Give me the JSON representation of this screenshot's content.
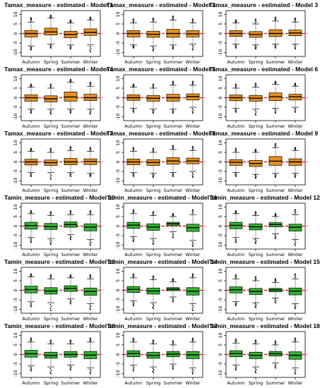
{
  "chart_data": {
    "type": "boxplot",
    "layout": {
      "rows": 6,
      "cols": 3
    },
    "categories": [
      "Autumn",
      "Spring",
      "Summer",
      "Winter"
    ],
    "yticks": [
      -10,
      -5,
      0,
      5,
      10
    ],
    "ylim": [
      -12,
      12
    ],
    "reference_line": {
      "y": 0,
      "color": "#e02020",
      "style": "dashed"
    },
    "colors": {
      "tamax": "#e6901e",
      "tamin": "#33b233",
      "outline": "#000000"
    },
    "panels": [
      {
        "title": "Tamax_measure - estimated - Model 1",
        "variable": "tamax",
        "boxes": [
          {
            "q1": -1.8,
            "med": 0.0,
            "q3": 1.6,
            "lo": -6.5,
            "hi": 6.0,
            "out": [
              -8.5,
              7.5,
              8.2
            ]
          },
          {
            "q1": -0.8,
            "med": 0.8,
            "q3": 2.8,
            "lo": -5.5,
            "hi": 8.0,
            "out": [
              -7.5,
              9.5
            ]
          },
          {
            "q1": -2.2,
            "med": -0.5,
            "q3": 1.2,
            "lo": -6.0,
            "hi": 5.5,
            "out": [
              -8.0,
              7.0
            ]
          },
          {
            "q1": -1.0,
            "med": 0.6,
            "q3": 2.4,
            "lo": -6.0,
            "hi": 7.0,
            "out": [
              -9.5,
              8.5
            ]
          }
        ]
      },
      {
        "title": "Tamax_measure - estimated - Model 2",
        "variable": "tamax",
        "boxes": [
          {
            "q1": -1.8,
            "med": 0.0,
            "q3": 1.5,
            "lo": -6.0,
            "hi": 5.5,
            "out": [
              -7.5,
              7.5
            ]
          },
          {
            "q1": -2.0,
            "med": -0.4,
            "q3": 1.2,
            "lo": -6.5,
            "hi": 6.0,
            "out": [
              -9.0,
              8.0
            ]
          },
          {
            "q1": -2.0,
            "med": 0.0,
            "q3": 2.2,
            "lo": -6.0,
            "hi": 7.0,
            "out": [
              -8.0,
              9.0
            ]
          },
          {
            "q1": -1.8,
            "med": -0.2,
            "q3": 1.5,
            "lo": -5.5,
            "hi": 5.5,
            "out": [
              -8.5,
              7.5
            ]
          }
        ]
      },
      {
        "title": "Tamax_measure - estimated - Model 3",
        "variable": "tamax",
        "boxes": [
          {
            "q1": -1.5,
            "med": 0.0,
            "q3": 1.5,
            "lo": -5.5,
            "hi": 5.5,
            "out": [
              -7.5,
              7.0
            ]
          },
          {
            "q1": -2.0,
            "med": -0.5,
            "q3": 1.0,
            "lo": -6.0,
            "hi": 5.0,
            "out": [
              -8.0,
              7.5
            ]
          },
          {
            "q1": -1.6,
            "med": 0.0,
            "q3": 2.0,
            "lo": -5.5,
            "hi": 6.5,
            "out": [
              -7.5,
              8.5
            ]
          },
          {
            "q1": -1.2,
            "med": 0.3,
            "q3": 1.8,
            "lo": -5.5,
            "hi": 6.0,
            "out": [
              -8.0,
              8.0
            ]
          }
        ]
      },
      {
        "title": "Tamax_measure - estimated - Model 4",
        "variable": "tamax",
        "boxes": [
          {
            "q1": -1.8,
            "med": 0.0,
            "q3": 1.5,
            "lo": -6.0,
            "hi": 5.5,
            "out": [
              -8.0,
              7.0
            ]
          },
          {
            "q1": -2.2,
            "med": -0.6,
            "q3": 1.0,
            "lo": -6.0,
            "hi": 5.0,
            "out": [
              -8.5,
              7.0
            ]
          },
          {
            "q1": -1.8,
            "med": 0.4,
            "q3": 3.0,
            "lo": -6.0,
            "hi": 8.0,
            "out": [
              -8.0,
              9.5
            ]
          },
          {
            "q1": -1.5,
            "med": 0.0,
            "q3": 1.8,
            "lo": -6.0,
            "hi": 6.0,
            "out": [
              -8.5,
              8.0
            ]
          }
        ]
      },
      {
        "title": "Tamax_measure - estimated - Model 5",
        "variable": "tamax",
        "boxes": [
          {
            "q1": -1.4,
            "med": 0.0,
            "q3": 1.5,
            "lo": -5.5,
            "hi": 5.5,
            "out": [
              -7.5,
              7.0
            ]
          },
          {
            "q1": -1.8,
            "med": -0.3,
            "q3": 1.2,
            "lo": -6.0,
            "hi": 5.0,
            "out": [
              -8.0,
              7.0
            ]
          },
          {
            "q1": -1.8,
            "med": 0.0,
            "q3": 1.8,
            "lo": -6.0,
            "hi": 6.5,
            "out": [
              -8.0,
              8.5
            ]
          },
          {
            "q1": -1.2,
            "med": 0.6,
            "q3": 2.0,
            "lo": -5.0,
            "hi": 6.5,
            "out": [
              -8.0,
              8.5
            ]
          }
        ]
      },
      {
        "title": "Tamax_measure - estimated - Model 6",
        "variable": "tamax",
        "boxes": [
          {
            "q1": -1.6,
            "med": 0.0,
            "q3": 1.4,
            "lo": -5.5,
            "hi": 5.0,
            "out": [
              -7.5,
              7.0
            ]
          },
          {
            "q1": -1.8,
            "med": -0.3,
            "q3": 1.2,
            "lo": -6.0,
            "hi": 5.5,
            "out": [
              -9.0,
              7.5
            ]
          },
          {
            "q1": -1.5,
            "med": 0.5,
            "q3": 2.5,
            "lo": -5.5,
            "hi": 7.0,
            "out": [
              -8.0,
              8.5
            ]
          },
          {
            "q1": -1.2,
            "med": 0.5,
            "q3": 1.8,
            "lo": -5.0,
            "hi": 6.0,
            "out": [
              -7.5,
              7.5
            ]
          }
        ]
      },
      {
        "title": "Tamax_measure - estimated - Model 7",
        "variable": "tamax",
        "boxes": [
          {
            "q1": -1.6,
            "med": 0.0,
            "q3": 1.4,
            "lo": -5.5,
            "hi": 5.5,
            "out": [
              -7.5,
              7.0
            ]
          },
          {
            "q1": -1.8,
            "med": -0.4,
            "q3": 1.0,
            "lo": -5.5,
            "hi": 5.0,
            "out": [
              -9.0,
              7.0
            ]
          },
          {
            "q1": -1.5,
            "med": 0.0,
            "q3": 1.8,
            "lo": -5.5,
            "hi": 6.0,
            "out": [
              -7.5,
              8.0
            ]
          },
          {
            "q1": -1.4,
            "med": 0.2,
            "q3": 1.6,
            "lo": -6.0,
            "hi": 5.5,
            "out": [
              -7.5,
              7.5
            ]
          }
        ]
      },
      {
        "title": "Tamax_measure - estimated - Model 8",
        "variable": "tamax",
        "boxes": [
          {
            "q1": -1.5,
            "med": 0.0,
            "q3": 1.5,
            "lo": -5.5,
            "hi": 5.5,
            "out": [
              -7.5,
              7.5
            ]
          },
          {
            "q1": -1.8,
            "med": -0.3,
            "q3": 1.2,
            "lo": -6.0,
            "hi": 5.0,
            "out": [
              -8.0,
              7.0
            ]
          },
          {
            "q1": -1.2,
            "med": 0.5,
            "q3": 2.2,
            "lo": -5.5,
            "hi": 6.5,
            "out": [
              -7.5,
              8.5
            ]
          },
          {
            "q1": -1.0,
            "med": 0.5,
            "q3": 2.0,
            "lo": -5.0,
            "hi": 6.0,
            "out": [
              -8.0,
              8.0
            ]
          }
        ]
      },
      {
        "title": "Tamax_measure - estimated - Model 9",
        "variable": "tamax",
        "boxes": [
          {
            "q1": -1.8,
            "med": -0.2,
            "q3": 1.2,
            "lo": -5.5,
            "hi": 5.0,
            "out": [
              -7.5,
              7.0
            ]
          },
          {
            "q1": -2.4,
            "med": -0.8,
            "q3": 0.8,
            "lo": -6.5,
            "hi": 5.0,
            "out": [
              -8.5,
              6.5
            ]
          },
          {
            "q1": -1.8,
            "med": 0.4,
            "q3": 2.8,
            "lo": -6.0,
            "hi": 7.5,
            "out": [
              -8.0,
              9.5
            ]
          },
          {
            "q1": -1.8,
            "med": 0.0,
            "q3": 1.6,
            "lo": -6.0,
            "hi": 6.0,
            "out": [
              -8.0,
              7.5
            ]
          }
        ]
      },
      {
        "title": "Tamin_measure - estimated - Model 10",
        "variable": "tamin",
        "boxes": [
          {
            "q1": -1.6,
            "med": 0.3,
            "q3": 2.0,
            "lo": -6.0,
            "hi": 6.5,
            "out": [
              -8.5,
              8.0
            ]
          },
          {
            "q1": -1.8,
            "med": -0.3,
            "q3": 1.4,
            "lo": -6.5,
            "hi": 5.5,
            "out": [
              -9.5,
              7.5
            ]
          },
          {
            "q1": -0.6,
            "med": 0.8,
            "q3": 2.2,
            "lo": -4.5,
            "hi": 6.0,
            "out": [
              -7.0,
              8.0
            ]
          },
          {
            "q1": -2.5,
            "med": -0.5,
            "q3": 1.2,
            "lo": -7.0,
            "hi": 6.0,
            "out": [
              -10.0,
              8.0
            ]
          }
        ]
      },
      {
        "title": "Tamin_measure - estimated - Model 11",
        "variable": "tamin",
        "boxes": [
          {
            "q1": -1.2,
            "med": 0.5,
            "q3": 2.0,
            "lo": -5.5,
            "hi": 6.5,
            "out": [
              -8.0,
              8.5
            ]
          },
          {
            "q1": -2.2,
            "med": -0.5,
            "q3": 1.2,
            "lo": -6.5,
            "hi": 5.5,
            "out": [
              -9.5,
              7.5
            ]
          },
          {
            "q1": 0.2,
            "med": 1.2,
            "q3": 2.0,
            "lo": -3.0,
            "hi": 5.0,
            "out": [
              -6.0,
              6.5
            ]
          },
          {
            "q1": -2.8,
            "med": -0.8,
            "q3": 1.0,
            "lo": -7.5,
            "hi": 6.0,
            "out": [
              -10.5,
              8.5
            ]
          }
        ]
      },
      {
        "title": "Tamin_measure - estimated - Model 12",
        "variable": "tamin",
        "boxes": [
          {
            "q1": -1.4,
            "med": 0.4,
            "q3": 2.0,
            "lo": -6.0,
            "hi": 6.5,
            "out": [
              -8.5,
              8.0
            ]
          },
          {
            "q1": -2.0,
            "med": -0.4,
            "q3": 1.2,
            "lo": -6.5,
            "hi": 5.5,
            "out": [
              -9.0,
              7.5
            ]
          },
          {
            "q1": -0.4,
            "med": 0.8,
            "q3": 1.8,
            "lo": -4.0,
            "hi": 5.0,
            "out": [
              -6.5,
              6.5
            ]
          },
          {
            "q1": -2.6,
            "med": -0.6,
            "q3": 1.0,
            "lo": -7.0,
            "hi": 6.0,
            "out": [
              -10.0,
              8.5
            ]
          }
        ]
      },
      {
        "title": "Tamin_measure - estimated - Model 13",
        "variable": "tamin",
        "boxes": [
          {
            "q1": -1.4,
            "med": 0.4,
            "q3": 2.2,
            "lo": -6.0,
            "hi": 7.0,
            "out": [
              -8.5,
              8.5
            ]
          },
          {
            "q1": -2.0,
            "med": -0.4,
            "q3": 1.4,
            "lo": -6.5,
            "hi": 6.0,
            "out": [
              -10.5,
              8.0
            ]
          },
          {
            "q1": -0.6,
            "med": 1.0,
            "q3": 2.4,
            "lo": -4.5,
            "hi": 6.5,
            "out": [
              -7.0,
              8.0
            ]
          },
          {
            "q1": -2.6,
            "med": -0.6,
            "q3": 1.2,
            "lo": -7.0,
            "hi": 6.0,
            "out": [
              -10.0,
              8.0
            ]
          }
        ]
      },
      {
        "title": "Tamin_measure - estimated - Model 14",
        "variable": "tamin",
        "boxes": [
          {
            "q1": -1.2,
            "med": 0.5,
            "q3": 2.0,
            "lo": -5.5,
            "hi": 6.5,
            "out": [
              -8.0,
              8.5
            ]
          },
          {
            "q1": -2.0,
            "med": -0.4,
            "q3": 1.2,
            "lo": -6.5,
            "hi": 5.5,
            "out": [
              -9.5,
              7.5
            ]
          },
          {
            "q1": -0.2,
            "med": 0.6,
            "q3": 1.4,
            "lo": -3.5,
            "hi": 4.5,
            "out": [
              -6.0,
              6.0
            ]
          },
          {
            "q1": -2.5,
            "med": -0.5,
            "q3": 1.4,
            "lo": -7.0,
            "hi": 6.5,
            "out": [
              -10.5,
              8.5
            ]
          }
        ]
      },
      {
        "title": "Tamin_measure - estimated - Model 15",
        "variable": "tamin",
        "boxes": [
          {
            "q1": -1.4,
            "med": 0.3,
            "q3": 1.8,
            "lo": -6.0,
            "hi": 6.0,
            "out": [
              -8.0,
              8.0
            ]
          },
          {
            "q1": -2.2,
            "med": -0.6,
            "q3": 1.0,
            "lo": -6.5,
            "hi": 5.0,
            "out": [
              -9.0,
              7.0
            ]
          },
          {
            "q1": -0.8,
            "med": 0.2,
            "q3": 1.0,
            "lo": -4.0,
            "hi": 4.0,
            "out": [
              -6.5,
              6.0
            ]
          },
          {
            "q1": -2.4,
            "med": -0.4,
            "q3": 1.2,
            "lo": -7.0,
            "hi": 6.0,
            "out": [
              -9.5,
              8.5
            ]
          }
        ]
      },
      {
        "title": "Tamin_measure - estimated - Model 16",
        "variable": "tamin",
        "boxes": [
          {
            "q1": -1.4,
            "med": 0.4,
            "q3": 2.2,
            "lo": -6.0,
            "hi": 6.5,
            "out": [
              -8.5,
              8.5
            ]
          },
          {
            "q1": -2.0,
            "med": -0.5,
            "q3": 1.2,
            "lo": -6.5,
            "hi": 5.5,
            "out": [
              -10.0,
              7.5
            ]
          },
          {
            "q1": -1.4,
            "med": 0.0,
            "q3": 1.6,
            "lo": -5.5,
            "hi": 5.5,
            "out": [
              -8.0,
              7.5
            ]
          },
          {
            "q1": -2.2,
            "med": -0.3,
            "q3": 1.6,
            "lo": -7.0,
            "hi": 6.5,
            "out": [
              -10.0,
              8.5
            ]
          }
        ]
      },
      {
        "title": "Tamin_measure - estimated - Model 17",
        "variable": "tamin",
        "boxes": [
          {
            "q1": -1.2,
            "med": 0.5,
            "q3": 2.0,
            "lo": -5.5,
            "hi": 6.5,
            "out": [
              -8.5,
              8.5
            ]
          },
          {
            "q1": -2.0,
            "med": -0.5,
            "q3": 1.2,
            "lo": -6.5,
            "hi": 5.5,
            "out": [
              -9.5,
              7.5
            ]
          },
          {
            "q1": -1.2,
            "med": 0.2,
            "q3": 1.6,
            "lo": -5.0,
            "hi": 5.0,
            "out": [
              -7.5,
              7.0
            ]
          },
          {
            "q1": -2.2,
            "med": -0.2,
            "q3": 1.6,
            "lo": -7.0,
            "hi": 6.5,
            "out": [
              -10.0,
              8.5
            ]
          }
        ]
      },
      {
        "title": "Tamin_measure - estimated - Model 18",
        "variable": "tamin",
        "boxes": [
          {
            "q1": -1.2,
            "med": 0.5,
            "q3": 2.0,
            "lo": -5.5,
            "hi": 6.0,
            "out": [
              -8.0,
              8.0
            ]
          },
          {
            "q1": -2.2,
            "med": -0.5,
            "q3": 1.2,
            "lo": -6.5,
            "hi": 5.5,
            "out": [
              -9.5,
              7.5
            ]
          },
          {
            "q1": -0.8,
            "med": 0.4,
            "q3": 1.6,
            "lo": -4.5,
            "hi": 5.0,
            "out": [
              -7.0,
              7.0
            ]
          },
          {
            "q1": -2.5,
            "med": -0.4,
            "q3": 1.4,
            "lo": -7.0,
            "hi": 6.5,
            "out": [
              -10.0,
              8.5
            ]
          }
        ]
      }
    ]
  }
}
